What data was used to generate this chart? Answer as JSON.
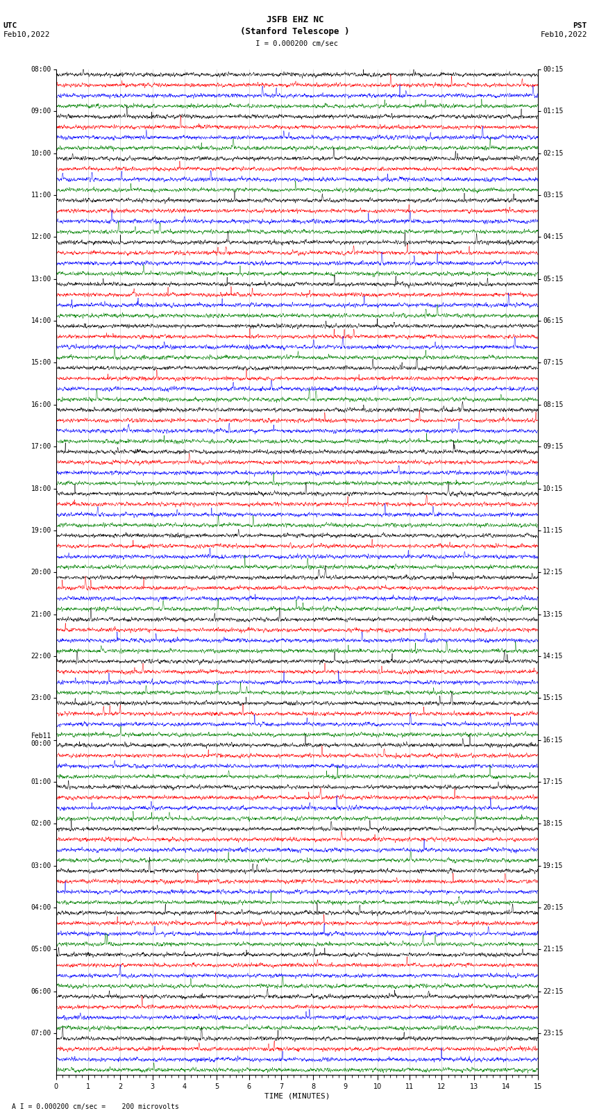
{
  "title_line1": "JSFB EHZ NC",
  "title_line2": "(Stanford Telescope )",
  "scale_text": " I = 0.000200 cm/sec",
  "left_label_top": "UTC",
  "left_label_date": "Feb10,2022",
  "right_label_top": "PST",
  "right_label_date": "Feb10,2022",
  "xlabel": "TIME (MINUTES)",
  "footer": "A I = 0.000200 cm/sec =    200 microvolts",
  "utc_times": [
    "08:00",
    "09:00",
    "10:00",
    "11:00",
    "12:00",
    "13:00",
    "14:00",
    "15:00",
    "16:00",
    "17:00",
    "18:00",
    "19:00",
    "20:00",
    "21:00",
    "22:00",
    "23:00",
    "Feb11\n00:00",
    "01:00",
    "02:00",
    "03:00",
    "04:00",
    "05:00",
    "06:00",
    "07:00"
  ],
  "pst_times": [
    "00:15",
    "01:15",
    "02:15",
    "03:15",
    "04:15",
    "05:15",
    "06:15",
    "07:15",
    "08:15",
    "09:15",
    "10:15",
    "11:15",
    "12:15",
    "13:15",
    "14:15",
    "15:15",
    "16:15",
    "17:15",
    "18:15",
    "19:15",
    "20:15",
    "21:15",
    "22:15",
    "23:15"
  ],
  "n_rows": 24,
  "n_traces": 4,
  "x_min": 0,
  "x_max": 15,
  "colors": [
    "black",
    "red",
    "blue",
    "green"
  ],
  "bg_color": "white",
  "amplitude": 0.28,
  "noise_seed": 42,
  "lw": 0.35
}
